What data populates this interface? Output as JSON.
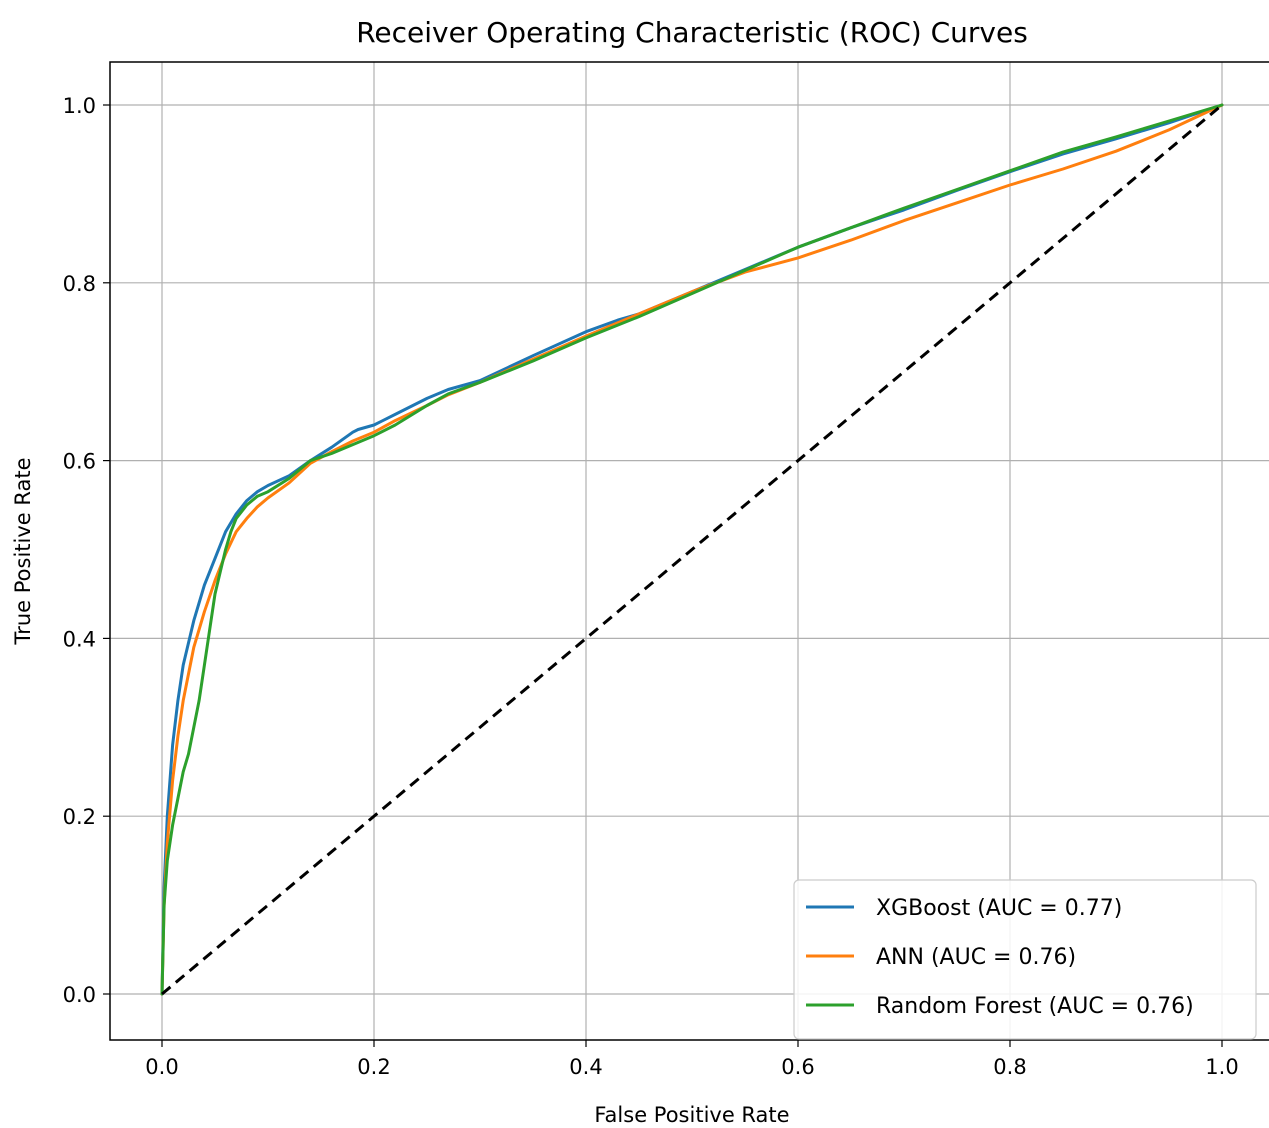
{
  "chart_data": {
    "type": "line",
    "title": "Receiver Operating Characteristic (ROC) Curves",
    "xlabel": "False Positive Rate",
    "ylabel": "True Positive Rate",
    "xlim": [
      -0.05,
      1.05
    ],
    "ylim": [
      -0.05,
      1.05
    ],
    "x_ticks": [
      0.0,
      0.2,
      0.4,
      0.6,
      0.8,
      1.0
    ],
    "y_ticks": [
      0.0,
      0.2,
      0.4,
      0.6,
      0.8,
      1.0
    ],
    "x_tick_labels": [
      "0.0",
      "0.2",
      "0.4",
      "0.6",
      "0.8",
      "1.0"
    ],
    "y_tick_labels": [
      "0.0",
      "0.2",
      "0.4",
      "0.6",
      "0.8",
      "1.0"
    ],
    "grid": true,
    "legend_position": "lower-right",
    "series": [
      {
        "name": "XGBoost (AUC = 0.77)",
        "color": "#1f77b4",
        "x": [
          0.0,
          0.002,
          0.005,
          0.01,
          0.015,
          0.02,
          0.03,
          0.04,
          0.05,
          0.06,
          0.07,
          0.08,
          0.09,
          0.1,
          0.12,
          0.14,
          0.16,
          0.18,
          0.185,
          0.2,
          0.22,
          0.25,
          0.27,
          0.3,
          0.35,
          0.4,
          0.43,
          0.45,
          0.5,
          0.55,
          0.6,
          0.65,
          0.7,
          0.75,
          0.8,
          0.85,
          0.9,
          0.95,
          1.0
        ],
        "y": [
          0.0,
          0.12,
          0.2,
          0.28,
          0.33,
          0.37,
          0.42,
          0.46,
          0.49,
          0.52,
          0.54,
          0.555,
          0.565,
          0.572,
          0.583,
          0.6,
          0.615,
          0.632,
          0.635,
          0.64,
          0.652,
          0.67,
          0.68,
          0.69,
          0.718,
          0.745,
          0.758,
          0.765,
          0.79,
          0.815,
          0.84,
          0.862,
          0.882,
          0.904,
          0.925,
          0.945,
          0.962,
          0.98,
          1.0
        ]
      },
      {
        "name": "ANN (AUC = 0.76)",
        "color": "#ff7f0e",
        "x": [
          0.0,
          0.002,
          0.005,
          0.01,
          0.015,
          0.02,
          0.03,
          0.04,
          0.05,
          0.06,
          0.07,
          0.08,
          0.09,
          0.1,
          0.12,
          0.14,
          0.16,
          0.18,
          0.2,
          0.22,
          0.25,
          0.27,
          0.3,
          0.35,
          0.4,
          0.45,
          0.5,
          0.55,
          0.6,
          0.65,
          0.7,
          0.75,
          0.8,
          0.85,
          0.9,
          0.95,
          1.0
        ],
        "y": [
          0.0,
          0.1,
          0.17,
          0.24,
          0.29,
          0.33,
          0.39,
          0.43,
          0.465,
          0.495,
          0.52,
          0.535,
          0.548,
          0.558,
          0.575,
          0.597,
          0.61,
          0.622,
          0.632,
          0.645,
          0.662,
          0.674,
          0.688,
          0.714,
          0.74,
          0.765,
          0.79,
          0.812,
          0.828,
          0.848,
          0.87,
          0.89,
          0.91,
          0.928,
          0.948,
          0.972,
          1.0
        ]
      },
      {
        "name": "Random Forest (AUC = 0.76)",
        "color": "#2ca02c",
        "x": [
          0.0,
          0.002,
          0.005,
          0.01,
          0.015,
          0.02,
          0.025,
          0.03,
          0.035,
          0.04,
          0.045,
          0.05,
          0.055,
          0.06,
          0.065,
          0.07,
          0.08,
          0.09,
          0.1,
          0.12,
          0.14,
          0.16,
          0.18,
          0.2,
          0.22,
          0.25,
          0.27,
          0.3,
          0.35,
          0.4,
          0.45,
          0.5,
          0.55,
          0.6,
          0.65,
          0.7,
          0.75,
          0.8,
          0.85,
          0.9,
          0.95,
          1.0
        ],
        "y": [
          0.0,
          0.1,
          0.15,
          0.19,
          0.22,
          0.25,
          0.27,
          0.3,
          0.33,
          0.37,
          0.41,
          0.45,
          0.475,
          0.5,
          0.52,
          0.535,
          0.55,
          0.56,
          0.565,
          0.58,
          0.6,
          0.608,
          0.618,
          0.628,
          0.64,
          0.662,
          0.675,
          0.688,
          0.712,
          0.738,
          0.762,
          0.788,
          0.814,
          0.84,
          0.862,
          0.884,
          0.905,
          0.926,
          0.947,
          0.964,
          0.982,
          1.0
        ]
      },
      {
        "name": "",
        "color": "#000000",
        "style": "dashed",
        "x": [
          0.0,
          1.0
        ],
        "y": [
          0.0,
          1.0
        ]
      }
    ]
  }
}
